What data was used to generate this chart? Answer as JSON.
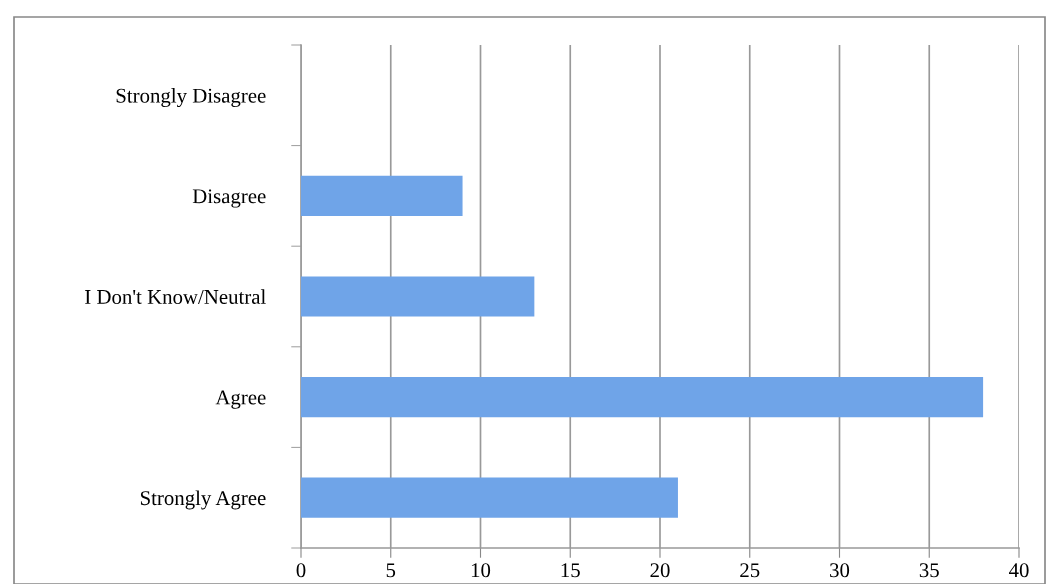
{
  "chart_data": {
    "type": "bar",
    "orientation": "horizontal",
    "categories": [
      "Strongly Disagree",
      "Disagree",
      "I Don't Know/Neutral",
      "Agree",
      "Strongly Agree"
    ],
    "values": [
      0,
      9,
      13,
      38,
      21
    ],
    "color": "#6fa4e8",
    "xlim": [
      0,
      40
    ],
    "xticks": [
      0,
      5,
      10,
      15,
      20,
      25,
      30,
      35,
      40
    ],
    "grid": "x"
  }
}
